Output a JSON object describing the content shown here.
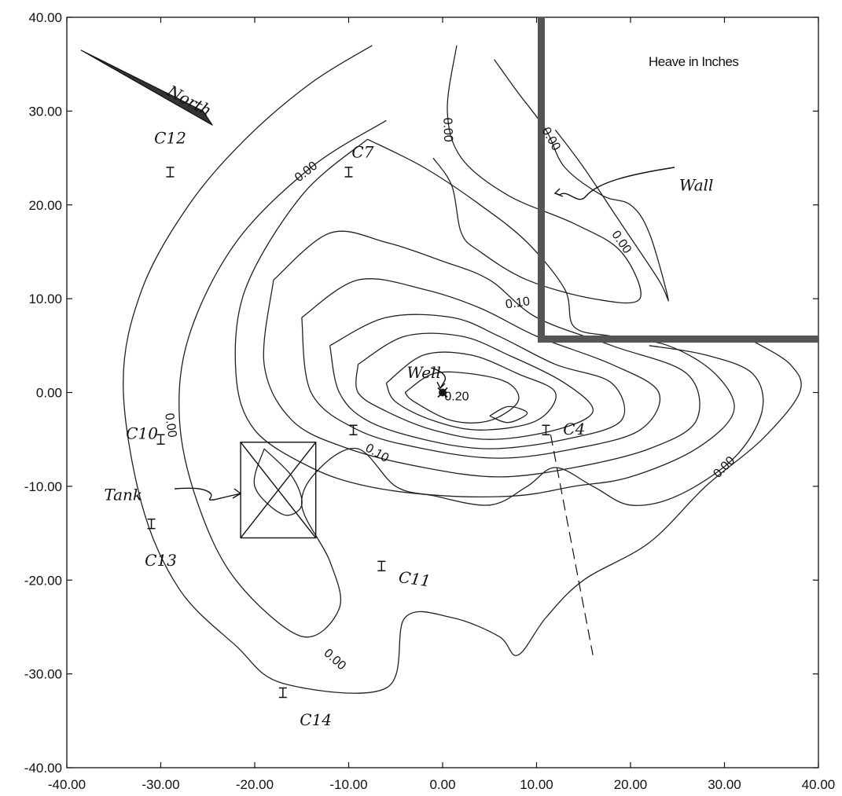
{
  "chart_data": {
    "type": "contour",
    "title": "Heave in Inches",
    "xlim": [
      -40,
      40
    ],
    "ylim": [
      -40,
      40
    ],
    "x_ticks": [
      -40,
      -30,
      -20,
      -10,
      0,
      10,
      20,
      30,
      40
    ],
    "y_ticks": [
      -40,
      -30,
      -20,
      -10,
      0,
      10,
      20,
      30,
      40
    ],
    "x_tick_labels": [
      "-40.00",
      "-30.00",
      "-20.00",
      "-10.00",
      "0.00",
      "10.00",
      "20.00",
      "30.00",
      "40.00"
    ],
    "y_tick_labels": [
      "-40.00",
      "-30.00",
      "-20.00",
      "-10.00",
      "0.00",
      "10.00",
      "20.00",
      "30.00",
      "40.00"
    ],
    "grid": false,
    "contour_labels": [
      {
        "text": "0.00",
        "x": 0.5,
        "y": 28,
        "rotate": 88
      },
      {
        "text": "0.00",
        "x": -14.5,
        "y": 23.5,
        "rotate": -38
      },
      {
        "text": "0.00",
        "x": 11.5,
        "y": 27,
        "rotate": 60
      },
      {
        "text": "0.00",
        "x": 19,
        "y": 16,
        "rotate": 55
      },
      {
        "text": "0.10",
        "x": 8,
        "y": 9.5,
        "rotate": -8
      },
      {
        "text": "0.20",
        "x": 1.5,
        "y": -0.5,
        "rotate": 0
      },
      {
        "text": "0.10",
        "x": -7,
        "y": -6.5,
        "rotate": 30
      },
      {
        "text": "0.00",
        "x": -29,
        "y": -3.5,
        "rotate": 82
      },
      {
        "text": "0.00",
        "x": 30,
        "y": -8,
        "rotate": -45
      },
      {
        "text": "0.00",
        "x": -11.5,
        "y": -28.5,
        "rotate": 42
      }
    ],
    "annotations": [
      {
        "text": "North",
        "x": -27,
        "y": 31
      },
      {
        "text": "C12",
        "x": -29,
        "y": 27
      },
      {
        "text": "C7",
        "x": -8.5,
        "y": 25.5
      },
      {
        "text": "Wall",
        "x": 27,
        "y": 22
      },
      {
        "text": "Well",
        "x": -2,
        "y": 2
      },
      {
        "text": "C4",
        "x": 14,
        "y": -4
      },
      {
        "text": "C10",
        "x": -32,
        "y": -4.5
      },
      {
        "text": "Tank",
        "x": -34,
        "y": -11
      },
      {
        "text": "C13",
        "x": -30,
        "y": -18
      },
      {
        "text": "C11",
        "x": -3,
        "y": -20
      },
      {
        "text": "C14",
        "x": -13.5,
        "y": -35
      }
    ],
    "markers": [
      {
        "name": "C12",
        "x": -29,
        "y": 23.5
      },
      {
        "name": "C7",
        "x": -10,
        "y": 23.5
      },
      {
        "name": "C10",
        "x": -30,
        "y": -5
      },
      {
        "name": "C13",
        "x": -31,
        "y": -14
      },
      {
        "name": "C11",
        "x": -6.5,
        "y": -18.5
      },
      {
        "name": "C4",
        "x": 11,
        "y": -4
      },
      {
        "name": "C14",
        "x": -17,
        "y": -32
      },
      {
        "name": "unlabeled",
        "x": -9.5,
        "y": -4
      }
    ],
    "well": {
      "x": 0,
      "y": 0
    },
    "tank": {
      "x1": -21.5,
      "x2": -13.5,
      "y1": -5.3,
      "y2": -15.5
    },
    "wall": [
      [
        10.5,
        40
      ],
      [
        10.5,
        5.7
      ],
      [
        40,
        5.7
      ]
    ],
    "dashed_line": [
      [
        11.5,
        -4.5
      ],
      [
        16,
        -28
      ]
    ],
    "contours": [
      [
        [
          -7.5,
          37
        ],
        [
          -14,
          33
        ],
        [
          -21,
          27
        ],
        [
          -27,
          20
        ],
        [
          -32,
          11
        ],
        [
          -34,
          1
        ],
        [
          -32,
          -12
        ],
        [
          -28,
          -21
        ],
        [
          -22,
          -27
        ],
        [
          -17,
          -31
        ],
        [
          -6,
          -31.5
        ],
        [
          -4,
          -24
        ],
        [
          1,
          -24
        ],
        [
          6,
          -26
        ],
        [
          8,
          -28
        ],
        [
          11,
          -24
        ],
        [
          15,
          -20
        ],
        [
          22,
          -16
        ],
        [
          28,
          -10
        ],
        [
          34,
          -5
        ],
        [
          38,
          0
        ],
        [
          37,
          3
        ],
        [
          33,
          5.5
        ]
      ],
      [
        [
          1.5,
          37
        ],
        [
          0.5,
          30
        ],
        [
          2,
          25
        ],
        [
          7,
          21
        ],
        [
          14,
          18
        ],
        [
          19,
          15
        ],
        [
          21,
          10
        ],
        [
          16,
          10
        ],
        [
          9,
          12
        ],
        [
          4,
          15
        ],
        [
          2,
          17
        ],
        [
          1,
          22
        ],
        [
          -1,
          25
        ]
      ],
      [
        [
          -6,
          29
        ],
        [
          -14,
          24
        ],
        [
          -22,
          16
        ],
        [
          -27,
          6
        ],
        [
          -28,
          -3
        ],
        [
          -26,
          -12
        ],
        [
          -22,
          -20
        ],
        [
          -15,
          -26
        ],
        [
          -11,
          -23
        ],
        [
          -12,
          -18
        ],
        [
          -15,
          -12
        ],
        [
          -13,
          -8
        ],
        [
          -9,
          -6
        ],
        [
          -5,
          -10
        ],
        [
          -1,
          -11
        ],
        [
          5,
          -12
        ],
        [
          9,
          -10
        ],
        [
          12,
          -8
        ],
        [
          16,
          -10
        ],
        [
          20,
          -12
        ],
        [
          25,
          -11
        ],
        [
          31,
          -7
        ],
        [
          34,
          -2
        ],
        [
          33,
          2
        ],
        [
          28,
          4
        ],
        [
          22,
          5
        ]
      ],
      [
        [
          -8,
          27
        ],
        [
          -15,
          21
        ],
        [
          -21,
          11
        ],
        [
          -22,
          2
        ],
        [
          -20,
          -4
        ],
        [
          -14,
          -8
        ],
        [
          -8,
          -10
        ],
        [
          0,
          -11
        ],
        [
          8,
          -11
        ],
        [
          14,
          -10
        ],
        [
          20,
          -9
        ],
        [
          27,
          -6
        ],
        [
          31,
          -2
        ],
        [
          29,
          2
        ],
        [
          24,
          5
        ],
        [
          18,
          6
        ],
        [
          14,
          7
        ],
        [
          13,
          11
        ],
        [
          9,
          16
        ],
        [
          4,
          20
        ],
        [
          -2,
          24
        ],
        [
          -8,
          27
        ]
      ],
      [
        [
          -18,
          12
        ],
        [
          -12,
          17
        ],
        [
          -6,
          16
        ],
        [
          0,
          14
        ],
        [
          5,
          12
        ],
        [
          10,
          8
        ],
        [
          18,
          5
        ],
        [
          26,
          2
        ],
        [
          27,
          -3
        ],
        [
          22,
          -6
        ],
        [
          14,
          -8
        ],
        [
          6,
          -9
        ],
        [
          -2,
          -8
        ],
        [
          -10,
          -6
        ],
        [
          -16,
          -3
        ],
        [
          -19,
          3
        ],
        [
          -18,
          12
        ]
      ],
      [
        [
          -15,
          8
        ],
        [
          -9,
          12
        ],
        [
          -2,
          11
        ],
        [
          4,
          9
        ],
        [
          10,
          6
        ],
        [
          18,
          3
        ],
        [
          23,
          0
        ],
        [
          21,
          -4
        ],
        [
          14,
          -6
        ],
        [
          6,
          -7
        ],
        [
          -2,
          -6
        ],
        [
          -9,
          -4
        ],
        [
          -14,
          0
        ],
        [
          -15,
          8
        ]
      ],
      [
        [
          -12,
          5
        ],
        [
          -6,
          8
        ],
        [
          1,
          8
        ],
        [
          6,
          6
        ],
        [
          12,
          3
        ],
        [
          18,
          1
        ],
        [
          19,
          -3
        ],
        [
          13,
          -5
        ],
        [
          5,
          -6
        ],
        [
          -2,
          -5
        ],
        [
          -8,
          -3
        ],
        [
          -11,
          0
        ],
        [
          -12,
          5
        ]
      ],
      [
        [
          -9,
          3
        ],
        [
          -4,
          6
        ],
        [
          2,
          6
        ],
        [
          7,
          4
        ],
        [
          13,
          1
        ],
        [
          16,
          -2
        ],
        [
          12,
          -4
        ],
        [
          5,
          -5
        ],
        [
          -1,
          -4
        ],
        [
          -6,
          -2
        ],
        [
          -9,
          0
        ],
        [
          -9,
          3
        ]
      ],
      [
        [
          -6,
          1
        ],
        [
          -2,
          4
        ],
        [
          3,
          4
        ],
        [
          8,
          2
        ],
        [
          12,
          0
        ],
        [
          10,
          -3
        ],
        [
          4,
          -4
        ],
        [
          -1,
          -3
        ],
        [
          -5,
          -1
        ],
        [
          -6,
          1
        ]
      ],
      [
        [
          -4,
          0
        ],
        [
          -1,
          2
        ],
        [
          3,
          2
        ],
        [
          7,
          1
        ],
        [
          8,
          -1
        ],
        [
          5,
          -3
        ],
        [
          1,
          -3
        ],
        [
          -3,
          -1
        ],
        [
          -4,
          0
        ]
      ],
      [
        [
          5,
          -2.5
        ],
        [
          7,
          -1.5
        ],
        [
          9,
          -2.2
        ],
        [
          7,
          -3.2
        ],
        [
          5,
          -2.5
        ]
      ],
      [
        [
          -19,
          -6
        ],
        [
          -16,
          -9
        ],
        [
          -15,
          -12
        ],
        [
          -17,
          -13
        ],
        [
          -20,
          -10
        ],
        [
          -19,
          -6
        ]
      ],
      [
        [
          5.5,
          35.5
        ],
        [
          8,
          32
        ],
        [
          11,
          28
        ],
        [
          13,
          24
        ],
        [
          17,
          21
        ],
        [
          20,
          20
        ],
        [
          22,
          17
        ],
        [
          24,
          10
        ],
        [
          23,
          12
        ],
        [
          19,
          18
        ],
        [
          15,
          24
        ],
        [
          12,
          28
        ]
      ]
    ]
  }
}
